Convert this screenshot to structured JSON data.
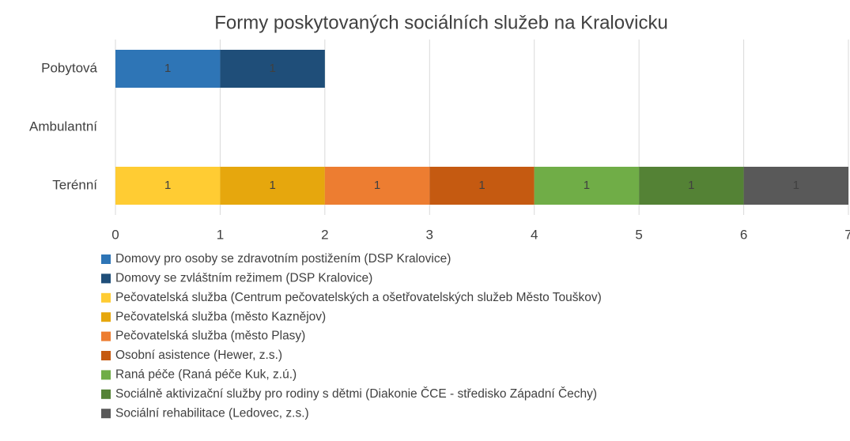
{
  "chart_data": {
    "type": "stacked_bar_horizontal",
    "title": "Formy poskytovaných sociálních služeb na Kralovicku",
    "categories": [
      "Pobytová",
      "Ambulantní",
      "Terénní"
    ],
    "series": [
      {
        "name": "Domovy pro osoby se zdravotním postižením (DSP Kralovice)",
        "color": "#2e75b6",
        "values": [
          1,
          null,
          null
        ]
      },
      {
        "name": "Domovy se zvláštním režimem (DSP Kralovice)",
        "color": "#1f4e79",
        "values": [
          1,
          null,
          null
        ]
      },
      {
        "name": "Pečovatelská služba (Centrum pečovatelských a ošetřovatelských služeb Město Touškov)",
        "color": "#ffcc33",
        "values": [
          null,
          null,
          1
        ]
      },
      {
        "name": "Pečovatelská služba (město Kaznějov)",
        "color": "#e6a70d",
        "values": [
          null,
          null,
          1
        ]
      },
      {
        "name": "Pečovatelská služba (město Plasy)",
        "color": "#ed7d31",
        "values": [
          null,
          null,
          1
        ]
      },
      {
        "name": "Osobní asistence (Hewer, z.s.)",
        "color": "#c55a11",
        "values": [
          null,
          null,
          1
        ]
      },
      {
        "name": "Raná péče (Raná péče Kuk, z.ú.)",
        "color": "#70ad47",
        "values": [
          null,
          null,
          1
        ]
      },
      {
        "name": "Sociálně aktivizační služby pro rodiny s dětmi (Diakonie ČCE - středisko Západní Čechy)",
        "color": "#548235",
        "values": [
          null,
          null,
          1
        ]
      },
      {
        "name": "Sociální rehabilitace (Ledovec, z.s.)",
        "color": "#595959",
        "values": [
          null,
          null,
          1
        ]
      }
    ],
    "xlim": [
      0,
      7
    ],
    "xticks": [
      0,
      1,
      2,
      3,
      4,
      5,
      6,
      7
    ],
    "grid": true,
    "legend": "bottom"
  }
}
